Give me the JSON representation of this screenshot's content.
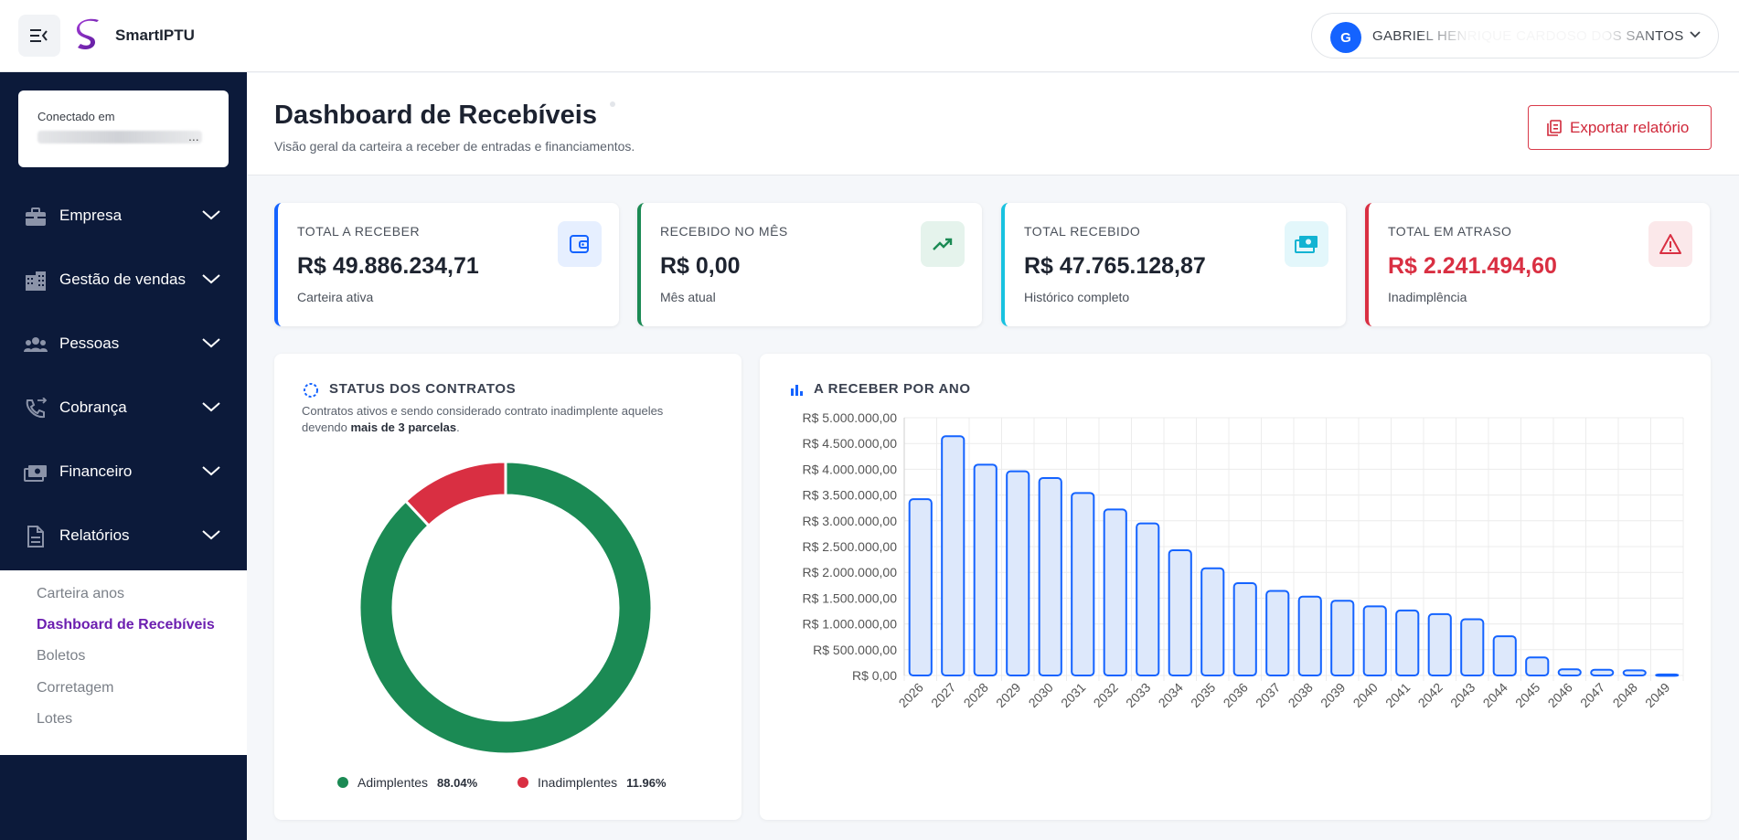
{
  "app": {
    "name": "SmartIPTU"
  },
  "user": {
    "initial": "G",
    "name": "GABRIEL HENRIQUE CARDOSO DOS SANTOS"
  },
  "sidebar": {
    "connected_label": "Conectado em",
    "connected_value": "...",
    "items": [
      {
        "label": "Empresa",
        "icon": "briefcase-icon"
      },
      {
        "label": "Gestão de vendas",
        "icon": "buildings-icon"
      },
      {
        "label": "Pessoas",
        "icon": "people-icon"
      },
      {
        "label": "Cobrança",
        "icon": "phone-icon"
      },
      {
        "label": "Financeiro",
        "icon": "money-icon"
      },
      {
        "label": "Relatórios",
        "icon": "document-icon"
      }
    ],
    "submenu": [
      {
        "label": "Carteira anos",
        "active": false
      },
      {
        "label": "Dashboard de Recebíveis",
        "active": true
      },
      {
        "label": "Boletos",
        "active": false
      },
      {
        "label": "Corretagem",
        "active": false
      },
      {
        "label": "Lotes",
        "active": false
      }
    ]
  },
  "header": {
    "title": "Dashboard de Recebíveis",
    "subtitle": "Visão geral da carteira a receber de entradas e financiamentos.",
    "export_label": "Exportar relatório"
  },
  "kpis": [
    {
      "label": "TOTAL A RECEBER",
      "value": "R$ 49.886.234,71",
      "note": "Carteira ativa",
      "accent": "#1463ff",
      "icon": "wallet-icon"
    },
    {
      "label": "RECEBIDO NO MÊS",
      "value": "R$ 0,00",
      "note": "Mês atual",
      "accent": "#1b8a54",
      "icon": "trend-up-icon"
    },
    {
      "label": "TOTAL RECEBIDO",
      "value": "R$ 47.765.128,87",
      "note": "Histórico completo",
      "accent": "#18c2e0",
      "icon": "cash-icon"
    },
    {
      "label": "TOTAL EM ATRASO",
      "value": "R$ 2.241.494,60",
      "note": "Inadimplência",
      "accent": "#d92f42",
      "icon": "warning-icon"
    }
  ],
  "status_panel": {
    "title": "STATUS DOS CONTRATOS",
    "desc_prefix": "Contratos ativos e sendo considerado contrato inadimplente aqueles devendo ",
    "desc_bold": "mais de 3 parcelas",
    "desc_suffix": "."
  },
  "year_panel": {
    "title": "A RECEBER POR ANO"
  },
  "chart_data": [
    {
      "type": "pie",
      "labels": [
        "Adimplentes",
        "Inadimplentes"
      ],
      "values": [
        88.04,
        11.96
      ],
      "value_labels": [
        "88.04%",
        "11.96%"
      ],
      "colors": [
        "#1b8a54",
        "#d92f42"
      ],
      "legend": "bottom"
    },
    {
      "type": "bar",
      "categories": [
        "2026",
        "2027",
        "2028",
        "2029",
        "2030",
        "2031",
        "2032",
        "2033",
        "2034",
        "2035",
        "2036",
        "2037",
        "2038",
        "2039",
        "2040",
        "2041",
        "2042",
        "2043",
        "2044",
        "2045",
        "2046",
        "2047",
        "2048",
        "2049"
      ],
      "values": [
        3420000,
        4640000,
        4090000,
        3960000,
        3830000,
        3540000,
        3220000,
        2950000,
        2430000,
        2080000,
        1790000,
        1640000,
        1530000,
        1450000,
        1340000,
        1260000,
        1190000,
        1090000,
        760000,
        350000,
        120000,
        110000,
        100000,
        20000
      ],
      "ylim": [
        0,
        5000000
      ],
      "yticks": [
        "R$ 0,00",
        "R$ 500.000,00",
        "R$ 1.000.000,00",
        "R$ 1.500.000,00",
        "R$ 2.000.000,00",
        "R$ 2.500.000,00",
        "R$ 3.000.000,00",
        "R$ 3.500.000,00",
        "R$ 4.000.000,00",
        "R$ 4.500.000,00",
        "R$ 5.000.000,00"
      ],
      "grid": true,
      "bar_color": "#1463ff"
    }
  ]
}
